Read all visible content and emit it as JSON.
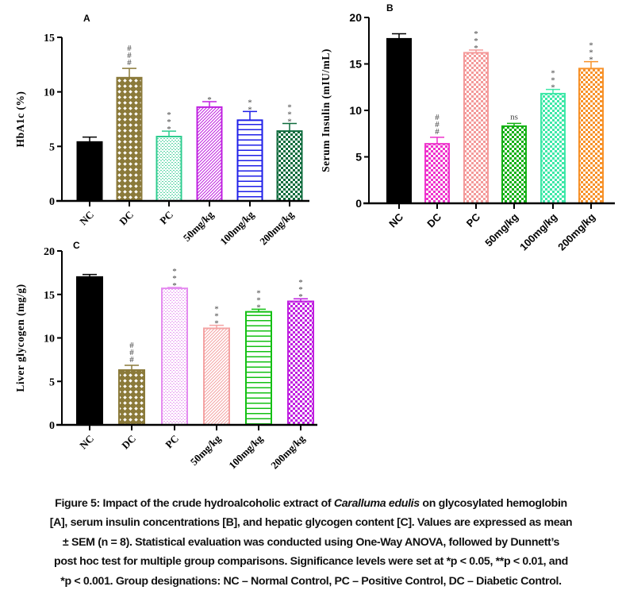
{
  "caption": {
    "prefix": "Figure 5: Impact of the crude hydroalcoholic extract of ",
    "species": "Caralluma edulis",
    "line1_suffix": " on glycosylated hemoglobin",
    "line2": "[A], serum insulin concentrations [B], and hepatic glycogen content [C]. Values are expressed as mean",
    "line3": "± SEM (n = 8). Statistical evaluation was conducted using One-Way ANOVA, followed by Dunnett’s",
    "line4": "post hoc test for multiple group comparisons. Significance levels were set at *p < 0.05, **p < 0.01, and",
    "line5": "*p < 0.001. Group designations: NC – Normal Control, PC – Positive Control, DC – Diabetic Control."
  },
  "chart_data": [
    {
      "panel": "A",
      "type": "bar",
      "title": "",
      "xlabel": "",
      "ylabel": "HbA1c (%)",
      "ylim": [
        0,
        15
      ],
      "yticks": [
        0,
        5,
        10,
        15
      ],
      "grid": false,
      "categories": [
        "NC",
        "DC",
        "PC",
        "50mg/kg",
        "100mg/kg",
        "200mg/kg"
      ],
      "values": [
        5.4,
        11.3,
        5.9,
        8.6,
        7.4,
        6.4
      ],
      "errors": [
        0.45,
        0.85,
        0.5,
        0.5,
        0.8,
        0.7
      ],
      "significance": [
        "",
        "###",
        "***",
        "*",
        "**",
        "***"
      ],
      "colors": [
        "#000000",
        "#8b7a3a",
        "#2ecc8f",
        "#c020e0",
        "#1f1fe8",
        "#0e6b3c"
      ],
      "patterns": [
        "solid",
        "diamond-lattice",
        "fine-dots",
        "diagonal",
        "horizontal",
        "checker"
      ]
    },
    {
      "panel": "B",
      "type": "bar",
      "title": "",
      "xlabel": "",
      "ylabel": "Serum Insulin (mIU/mL)",
      "ylim": [
        0,
        20
      ],
      "yticks": [
        0,
        5,
        10,
        15,
        20
      ],
      "grid": false,
      "categories": [
        "NC",
        "DC",
        "PC",
        "50mg/kg",
        "100mg/kg",
        "200mg/kg"
      ],
      "values": [
        17.7,
        6.4,
        16.2,
        8.3,
        11.8,
        14.5
      ],
      "errors": [
        0.55,
        0.7,
        0.3,
        0.3,
        0.45,
        0.75
      ],
      "significance": [
        "",
        "###",
        "***",
        "ns",
        "***",
        "***"
      ],
      "colors": [
        "#000000",
        "#ee33cc",
        "#f49a9a",
        "#12b012",
        "#3ee8a8",
        "#f7922a"
      ],
      "patterns": [
        "solid",
        "checker",
        "checker",
        "checker",
        "checker",
        "checker"
      ]
    },
    {
      "panel": "C",
      "type": "bar",
      "title": "",
      "xlabel": "",
      "ylabel": "Liver glycogen (mg/g)",
      "ylim": [
        0,
        20
      ],
      "yticks": [
        0,
        5,
        10,
        15,
        20
      ],
      "grid": false,
      "categories": [
        "NC",
        "DC",
        "PC",
        "50mg/kg",
        "100mg/kg",
        "200mg/kg"
      ],
      "values": [
        17.0,
        6.3,
        15.7,
        11.1,
        13.0,
        14.2
      ],
      "errors": [
        0.3,
        0.55,
        0.1,
        0.35,
        0.3,
        0.3
      ],
      "significance": [
        "",
        "###",
        "***",
        "***",
        "***",
        "***"
      ],
      "colors": [
        "#000000",
        "#8b7a3a",
        "#e58cf0",
        "#f4a3a3",
        "#14c014",
        "#c020e0"
      ],
      "patterns": [
        "solid",
        "diamond-lattice",
        "fine-dots",
        "diagonal",
        "horizontal",
        "checker"
      ]
    }
  ]
}
